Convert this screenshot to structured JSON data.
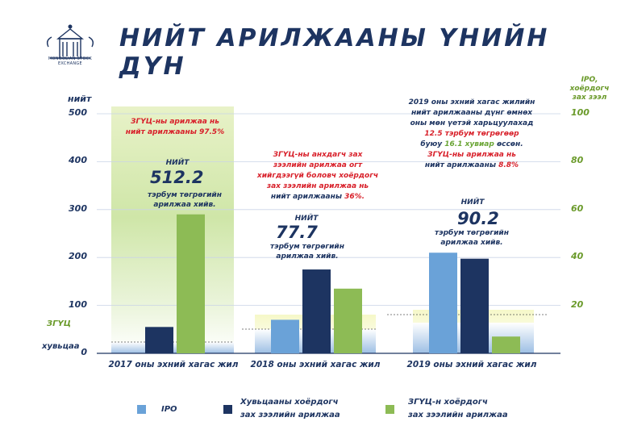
{
  "logo": {
    "text": "MONGOLIAN STOCK EXCHANGE"
  },
  "title": "НИЙТ АРИЛЖААНЫ ҮНИЙН ДҮН",
  "axes": {
    "left_unit": "нийт",
    "right_unit": "IPO, хоёрдогч зах зээл",
    "left_bottom_labels": [
      "ЗГҮЦ",
      "хувьцаа"
    ]
  },
  "annotations": {
    "p2017_head": [
      "ЗГҮЦ-ны арилжаа нь",
      "нийт арилжааны",
      "97.5%"
    ],
    "p2017_total_word": "НИЙТ",
    "p2017_total": "512.2",
    "p2017_unit": [
      "тэрбум төгрөгийн",
      "арилжаа хийв."
    ],
    "p2018_head": [
      "ЗГҮЦ-ны анхдагч зах",
      "зээлийн арилжаа огт",
      "хийгдээгүй боловч хоёрдогч",
      "зах зээлийн арилжаа нь",
      "нийт арилжааны",
      "36%."
    ],
    "p2018_total_word": "НИЙТ",
    "p2018_total": "77.7",
    "p2018_unit": [
      "тэрбум төгрөгийн",
      "арилжаа хийв."
    ],
    "p2019_head": [
      "2019 оны эхний хагас жилийн",
      "нийт арилжааны дүнг өмнөх",
      "оны мөн үетэй харьцуулахад",
      "12.5 тэрбум төгрөгөөр",
      "буюу",
      "16.1 хувиар",
      "өссөн.",
      "ЗГҮЦ-ны арилжаа нь",
      "нийт арилжааны",
      "8.8%"
    ],
    "p2019_total_word": "НИЙТ",
    "p2019_total": "90.2",
    "p2019_unit": [
      "тэрбум төгрөгийн",
      "арилжаа хийв."
    ]
  },
  "legend": [
    {
      "label": "IPO",
      "color": "#6aa2d8"
    },
    {
      "label": "Хувьцааны хоёрдогч\nзах зээлийн арилжаа",
      "color": "#1d3461"
    },
    {
      "label": "ЗГҮЦ-н хоёрдогч\nзах зээлийн арилжаа",
      "color": "#8dbb55"
    }
  ],
  "chart_data": {
    "type": "bar",
    "title": "НИЙТ АРИЛЖААНЫ ҮНИЙН ДҮН",
    "categories": [
      "2017 оны эхний хагас жил",
      "2018 оны эхний хагас жил",
      "2019 оны эхний хагас жил"
    ],
    "left_axis": {
      "ticks": [
        0,
        100,
        200,
        300,
        400,
        500
      ],
      "ylim": [
        0,
        500
      ]
    },
    "right_axis": {
      "ticks": [
        20,
        40,
        60,
        80,
        100
      ],
      "ylim": [
        0,
        100
      ]
    },
    "totals": [
      512.2,
      77.7,
      90.2
    ],
    "series": [
      {
        "name": "IPO",
        "axis": "right",
        "color": "#6aa2d8",
        "values": [
          0,
          14,
          42
        ]
      },
      {
        "name": "Хувьцааны хоёрдогч зах зээлийн арилжаа",
        "axis": "right",
        "color": "#1d3461",
        "values": [
          11,
          35,
          39.5
        ]
      },
      {
        "name": "ЗГҮЦ-н хоёрдогч зах зээлийн арилжаа",
        "axis": "right",
        "color": "#8dbb55",
        "values": [
          58,
          27,
          7
        ]
      }
    ]
  }
}
